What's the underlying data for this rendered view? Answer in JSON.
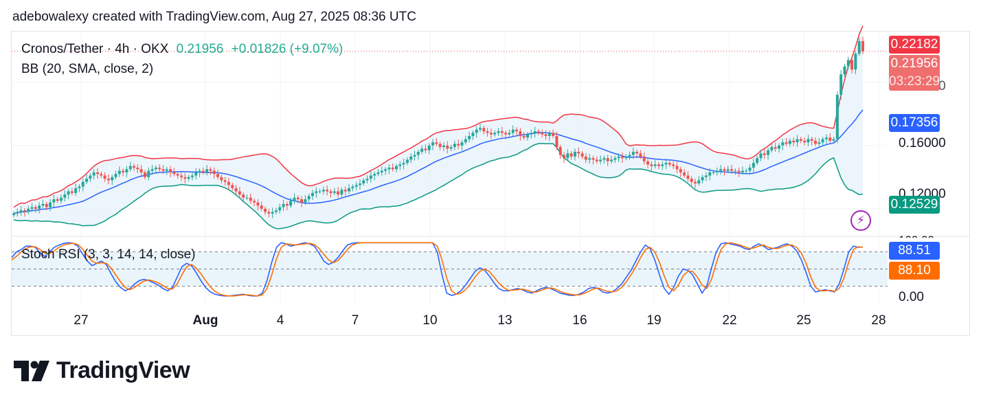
{
  "header": {
    "attribution": "adebowalexy created with TradingView.com, Aug 27, 2025 08:36 UTC"
  },
  "legend": {
    "symbol": "Cronos/Tether · 4h · OKX",
    "last": "0.21956",
    "change": "+0.01826 (+9.07%)",
    "indicator": "BB (20, SMA, close, 2)",
    "osc_indicator": "Stoch RSI (3, 3, 14, 14, close)"
  },
  "price_tags": {
    "high": "0.22182",
    "last": "0.21956",
    "countdown": "03:23:29",
    "basis": "0.17356",
    "lower": "0.12529",
    "stoch_k": "88.51",
    "stoch_d": "88.10"
  },
  "colors": {
    "up": "#26a69a",
    "down": "#ef5350",
    "upper_band": "#f23645",
    "basis": "#2962ff",
    "lower_band": "#089981",
    "band_fill": "#eaf4fb",
    "stoch_k": "#2962ff",
    "stoch_d": "#ff6d00"
  },
  "branding": {
    "logo_text": "TradingView",
    "logo_icon": "tradingview-logo-icon"
  },
  "chart_data": [
    {
      "type": "candlestick",
      "title": "Cronos/Tether · 4h · OKX",
      "y_axis_ticks": [
        "0.16000",
        "0.12000"
      ],
      "y_axis_partial_ticks": [
        "0.20000",
        "100.00"
      ],
      "ylim": [
        0.103,
        0.232
      ],
      "x_tick_labels": [
        "27",
        "Aug",
        "4",
        "7",
        "10",
        "13",
        "16",
        "19",
        "22",
        "25",
        "28"
      ],
      "x_tick_dates": [
        "2025-07-27",
        "2025-08-01",
        "2025-08-04",
        "2025-08-07",
        "2025-08-10",
        "2025-08-13",
        "2025-08-16",
        "2025-08-19",
        "2025-08-22",
        "2025-08-25",
        "2025-08-28"
      ],
      "x_start_date": "2025-07-24T12:00",
      "bar_interval_hours": 4,
      "closes": [
        0.117,
        0.118,
        0.119,
        0.118,
        0.12,
        0.121,
        0.12,
        0.122,
        0.123,
        0.121,
        0.124,
        0.126,
        0.125,
        0.127,
        0.129,
        0.131,
        0.13,
        0.133,
        0.134,
        0.137,
        0.139,
        0.141,
        0.143,
        0.142,
        0.141,
        0.139,
        0.138,
        0.14,
        0.142,
        0.144,
        0.143,
        0.145,
        0.147,
        0.146,
        0.145,
        0.143,
        0.14,
        0.144,
        0.145,
        0.146,
        0.145,
        0.144,
        0.145,
        0.143,
        0.142,
        0.141,
        0.14,
        0.139,
        0.14,
        0.141,
        0.143,
        0.144,
        0.143,
        0.145,
        0.144,
        0.142,
        0.14,
        0.138,
        0.137,
        0.135,
        0.133,
        0.131,
        0.129,
        0.127,
        0.127,
        0.125,
        0.124,
        0.122,
        0.12,
        0.118,
        0.117,
        0.118,
        0.119,
        0.121,
        0.123,
        0.122,
        0.125,
        0.127,
        0.126,
        0.124,
        0.126,
        0.128,
        0.13,
        0.131,
        0.131,
        0.132,
        0.131,
        0.13,
        0.131,
        0.129,
        0.132,
        0.131,
        0.133,
        0.134,
        0.135,
        0.136,
        0.138,
        0.139,
        0.141,
        0.142,
        0.143,
        0.144,
        0.145,
        0.146,
        0.145,
        0.147,
        0.148,
        0.149,
        0.151,
        0.153,
        0.154,
        0.156,
        0.158,
        0.157,
        0.16,
        0.162,
        0.161,
        0.159,
        0.16,
        0.158,
        0.159,
        0.161,
        0.16,
        0.162,
        0.164,
        0.166,
        0.168,
        0.17,
        0.171,
        0.169,
        0.168,
        0.167,
        0.168,
        0.169,
        0.168,
        0.167,
        0.168,
        0.17,
        0.169,
        0.166,
        0.165,
        0.167,
        0.168,
        0.169,
        0.168,
        0.167,
        0.166,
        0.168,
        0.166,
        0.159,
        0.154,
        0.152,
        0.155,
        0.153,
        0.156,
        0.155,
        0.153,
        0.151,
        0.152,
        0.151,
        0.15,
        0.151,
        0.152,
        0.15,
        0.151,
        0.152,
        0.153,
        0.152,
        0.153,
        0.154,
        0.156,
        0.155,
        0.153,
        0.15,
        0.148,
        0.147,
        0.148,
        0.147,
        0.148,
        0.149,
        0.148,
        0.147,
        0.145,
        0.143,
        0.141,
        0.139,
        0.137,
        0.136,
        0.138,
        0.14,
        0.141,
        0.143,
        0.143,
        0.144,
        0.145,
        0.144,
        0.145,
        0.144,
        0.144,
        0.143,
        0.144,
        0.144,
        0.146,
        0.149,
        0.152,
        0.155,
        0.154,
        0.157,
        0.159,
        0.158,
        0.16,
        0.162,
        0.161,
        0.163,
        0.162,
        0.164,
        0.163,
        0.162,
        0.164,
        0.163,
        0.161,
        0.162,
        0.164,
        0.165,
        0.163,
        0.164,
        0.192,
        0.205,
        0.21,
        0.214,
        0.208,
        0.218,
        0.226,
        0.2196
      ],
      "bollinger": {
        "upper_end": 0.22182,
        "basis_end": 0.17356,
        "lower_end": 0.12529
      }
    },
    {
      "type": "line",
      "title": "Stoch RSI (3, 3, 14, 14, close)",
      "y_axis_ticks": [
        "0.00"
      ],
      "ylim": [
        -8,
        100
      ],
      "bands": [
        20,
        50,
        80
      ],
      "series": [
        {
          "name": "K",
          "last": 88.51,
          "values": [
            70,
            80,
            84,
            90,
            90,
            88,
            78,
            72,
            80,
            88,
            92,
            95,
            96,
            95,
            90,
            76,
            64,
            56,
            60,
            64,
            58,
            42,
            28,
            18,
            12,
            16,
            24,
            30,
            32,
            30,
            26,
            22,
            16,
            12,
            18,
            36,
            54,
            60,
            56,
            44,
            30,
            18,
            10,
            6,
            4,
            3,
            3,
            4,
            5,
            6,
            4,
            3,
            3,
            8,
            30,
            62,
            88,
            96,
            94,
            90,
            92,
            94,
            96,
            94,
            90,
            78,
            64,
            58,
            62,
            70,
            82,
            92,
            95,
            96,
            96,
            96,
            96,
            96,
            96,
            96,
            96,
            96,
            96,
            96,
            96,
            96,
            96,
            96,
            96,
            96,
            80,
            40,
            8,
            4,
            6,
            12,
            22,
            34,
            46,
            52,
            48,
            38,
            26,
            16,
            12,
            12,
            14,
            16,
            14,
            10,
            8,
            12,
            16,
            18,
            16,
            12,
            8,
            6,
            4,
            4,
            6,
            10,
            16,
            18,
            16,
            10,
            8,
            10,
            16,
            24,
            36,
            48,
            64,
            80,
            92,
            86,
            66,
            40,
            16,
            6,
            18,
            38,
            50,
            48,
            40,
            24,
            8,
            20,
            52,
            80,
            94,
            96,
            94,
            92,
            90,
            86,
            84,
            90,
            94,
            90,
            84,
            86,
            88,
            92,
            94,
            90,
            82,
            66,
            44,
            20,
            10,
            12,
            14,
            12,
            10,
            24,
            50,
            80,
            90,
            88,
            88.51
          ],
          "color": "#2962ff"
        },
        {
          "name": "D",
          "last": 88.1,
          "values": [
            66,
            72,
            80,
            86,
            89,
            89,
            84,
            78,
            77,
            82,
            88,
            92,
            94,
            95,
            93,
            85,
            74,
            64,
            60,
            61,
            60,
            52,
            40,
            28,
            18,
            14,
            18,
            24,
            29,
            31,
            29,
            26,
            21,
            16,
            15,
            24,
            40,
            54,
            58,
            52,
            42,
            30,
            19,
            11,
            6,
            4,
            3,
            3,
            4,
            5,
            5,
            4,
            3,
            5,
            16,
            40,
            68,
            88,
            94,
            93,
            92,
            93,
            94,
            95,
            93,
            86,
            76,
            66,
            61,
            65,
            74,
            84,
            92,
            95,
            96,
            96,
            96,
            96,
            96,
            96,
            96,
            96,
            96,
            96,
            96,
            96,
            96,
            96,
            96,
            96,
            90,
            66,
            34,
            12,
            6,
            8,
            14,
            24,
            36,
            46,
            50,
            46,
            36,
            26,
            18,
            13,
            13,
            14,
            15,
            13,
            10,
            10,
            13,
            16,
            17,
            15,
            11,
            8,
            6,
            5,
            5,
            7,
            11,
            15,
            17,
            14,
            11,
            10,
            12,
            18,
            28,
            40,
            54,
            70,
            84,
            88,
            80,
            62,
            38,
            18,
            12,
            22,
            38,
            46,
            46,
            36,
            22,
            16,
            32,
            60,
            84,
            94,
            96,
            94,
            92,
            89,
            86,
            87,
            90,
            92,
            88,
            86,
            86,
            89,
            92,
            92,
            88,
            78,
            60,
            36,
            18,
            12,
            12,
            13,
            11,
            16,
            34,
            62,
            84,
            89,
            88.1
          ],
          "color": "#ff6d00"
        }
      ]
    }
  ]
}
